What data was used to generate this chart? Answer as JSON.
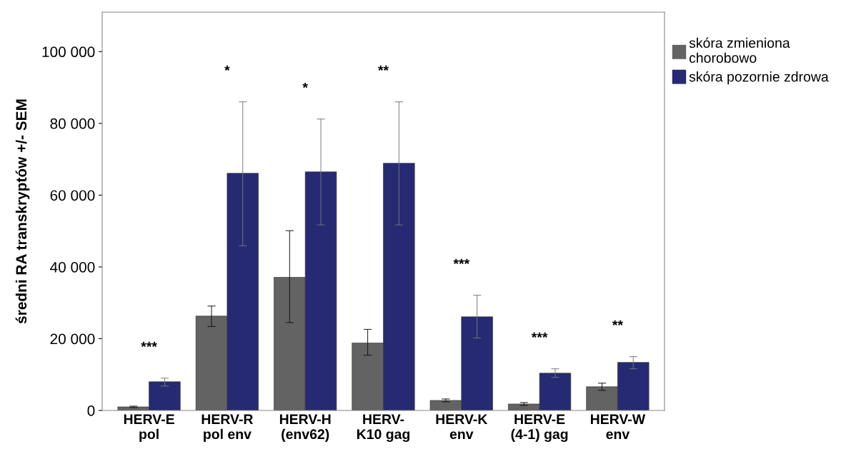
{
  "chart_data": {
    "type": "bar",
    "ylabel": "średni RA transkryptów +/- SEM",
    "categories": [
      "HERV-E\npol",
      "HERV-R\npol env",
      "HERV-H\n(env62)",
      "HERV-\nK10 gag",
      "HERV-K\nenv",
      "HERV-E\n(4-1) gag",
      "HERV-W\nenv"
    ],
    "series": [
      {
        "name": "skóra zmieniona\nchorobowo",
        "color": "#636363",
        "values": [
          1000,
          26300,
          37100,
          18800,
          2800,
          1800,
          6600
        ],
        "errors": [
          200,
          [
            23400,
            29100
          ],
          [
            24500,
            50100
          ],
          [
            15400,
            22600
          ],
          [
            2400,
            3200
          ],
          [
            1400,
            2200
          ],
          [
            5600,
            7600
          ]
        ]
      },
      {
        "name": "skóra pozornie zdrowa",
        "color": "#262a73",
        "values": [
          8000,
          66100,
          66500,
          68900,
          26100,
          10400,
          13400
        ],
        "errors": [
          [
            6800,
            9000
          ],
          [
            45900,
            86000
          ],
          [
            51700,
            81200
          ],
          [
            51700,
            86000
          ],
          [
            20200,
            32100
          ],
          [
            9200,
            11600
          ],
          [
            11600,
            15000
          ]
        ]
      }
    ],
    "ylim": [
      0,
      111000
    ],
    "yticks": [
      {
        "value": 0,
        "label": "0"
      },
      {
        "value": 20000,
        "label": "20 000"
      },
      {
        "value": 40000,
        "label": "40 000"
      },
      {
        "value": 60000,
        "label": "60 000"
      },
      {
        "value": 80000,
        "label": "80 000"
      },
      {
        "value": 100000,
        "label": "100 000"
      }
    ],
    "annotations": [
      "***",
      "*",
      "*",
      "**",
      "***",
      "***",
      "**"
    ],
    "grid": false,
    "legend": "top right"
  }
}
